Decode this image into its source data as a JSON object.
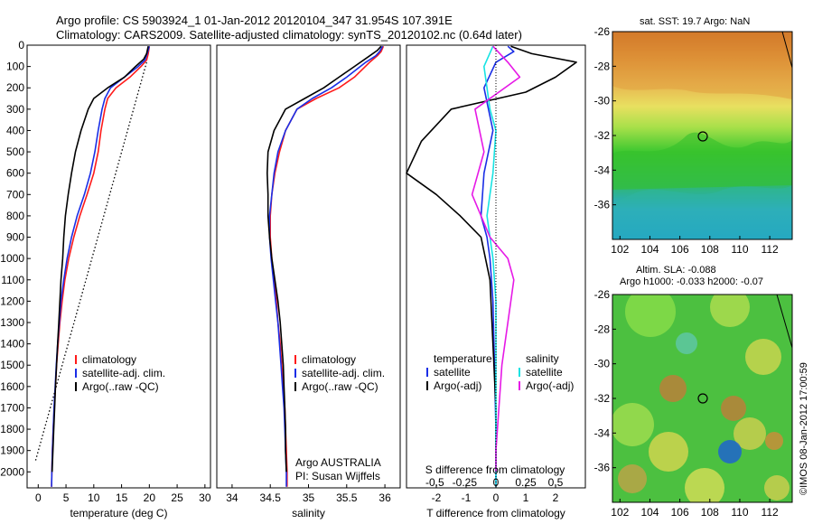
{
  "header": {
    "line1": "Argo profile: CS 5903924_1 01-Jan-2012 20120104_347 31.954S 107.391E",
    "line2": "Climatology: CARS2009. Satellite-adjusted climatology: synTS_20120102.nc (0.64d later)"
  },
  "colors": {
    "climatology": "#ff1a1a",
    "satellite": "#1a2ee6",
    "argo": "#000000",
    "satellite_salinity": "#17e3e3",
    "argo_salinity": "#e619e6"
  },
  "chart_data": [
    {
      "type": "line",
      "name": "temperature-profile",
      "xlabel": "temperature (deg C)",
      "xlim": [
        -2,
        31
      ],
      "ylim": [
        2075,
        0
      ],
      "xticks": [
        0,
        5,
        10,
        15,
        20,
        25,
        30
      ],
      "yticks": [
        0,
        100,
        200,
        300,
        400,
        500,
        600,
        700,
        800,
        900,
        1000,
        1100,
        1200,
        1300,
        1400,
        1500,
        1600,
        1700,
        1800,
        1900,
        2000
      ],
      "legend": [
        "climatology",
        "satellite-adj. clim.",
        "Argo(..raw -QC)"
      ],
      "series": [
        {
          "name": "climatology",
          "color": "#ff1a1a",
          "points": [
            [
              20,
              5
            ],
            [
              19.8,
              40
            ],
            [
              19.5,
              70
            ],
            [
              18.5,
              100
            ],
            [
              16.5,
              150
            ],
            [
              14,
              200
            ],
            [
              12.5,
              250
            ],
            [
              12,
              300
            ],
            [
              11.3,
              400
            ],
            [
              10.8,
              500
            ],
            [
              10,
              600
            ],
            [
              8.8,
              700
            ],
            [
              7.5,
              800
            ],
            [
              6.4,
              900
            ],
            [
              5.5,
              1000
            ],
            [
              4.8,
              1100
            ],
            [
              4.3,
              1200
            ],
            [
              3.9,
              1300
            ],
            [
              3.6,
              1400
            ],
            [
              3.3,
              1500
            ],
            [
              3.1,
              1600
            ],
            [
              2.9,
              1700
            ],
            [
              2.7,
              1800
            ],
            [
              2.55,
              1900
            ],
            [
              2.45,
              2000
            ],
            [
              2.4,
              2070
            ]
          ]
        },
        {
          "name": "satellite-adj. clim.",
          "color": "#1a2ee6",
          "points": [
            [
              20,
              5
            ],
            [
              19.6,
              40
            ],
            [
              19.2,
              70
            ],
            [
              18,
              100
            ],
            [
              15.5,
              150
            ],
            [
              13,
              200
            ],
            [
              12,
              250
            ],
            [
              11.5,
              300
            ],
            [
              10.8,
              400
            ],
            [
              10.2,
              500
            ],
            [
              9.4,
              600
            ],
            [
              8.3,
              700
            ],
            [
              7,
              800
            ],
            [
              6,
              900
            ],
            [
              5.2,
              1000
            ],
            [
              4.6,
              1100
            ],
            [
              4.1,
              1200
            ],
            [
              3.8,
              1300
            ],
            [
              3.5,
              1400
            ],
            [
              3.25,
              1500
            ],
            [
              3.05,
              1600
            ],
            [
              2.85,
              1700
            ],
            [
              2.7,
              1800
            ],
            [
              2.55,
              1900
            ],
            [
              2.45,
              2000
            ],
            [
              2.4,
              2070
            ]
          ]
        },
        {
          "name": "Argo(..raw -QC)",
          "color": "#000000",
          "points": [
            [
              19.8,
              5
            ],
            [
              19.5,
              40
            ],
            [
              19,
              65
            ],
            [
              17.5,
              100
            ],
            [
              15.5,
              150
            ],
            [
              12.5,
              200
            ],
            [
              10,
              250
            ],
            [
              9,
              300
            ],
            [
              7.7,
              400
            ],
            [
              6.7,
              500
            ],
            [
              6,
              600
            ],
            [
              5.4,
              700
            ],
            [
              4.9,
              800
            ],
            [
              4.6,
              900
            ],
            [
              4.4,
              1000
            ],
            [
              4.1,
              1100
            ],
            [
              3.9,
              1200
            ],
            [
              3.7,
              1300
            ],
            [
              3.5,
              1400
            ],
            [
              3.3,
              1500
            ],
            [
              3.1,
              1600
            ],
            [
              2.95,
              1700
            ],
            [
              2.8,
              1800
            ],
            [
              2.65,
              1900
            ],
            [
              2.5,
              2000
            ]
          ]
        },
        {
          "name": "",
          "color": "#000000",
          "dotted": true,
          "points": [
            [
              19.5,
              80
            ],
            [
              -0.5,
              1950
            ]
          ]
        }
      ]
    },
    {
      "type": "line",
      "name": "salinity-profile",
      "xlabel": "salinity",
      "xlim": [
        33.8,
        36.2
      ],
      "ylim": [
        2075,
        0
      ],
      "xticks": [
        34,
        34.5,
        35,
        35.5,
        36
      ],
      "legend": [
        "climatology",
        "satellite-adj. clim.",
        "Argo(..raw -QC)"
      ],
      "annotation_line1": "Argo AUSTRALIA",
      "annotation_line2": "PI: Susan Wijffels",
      "series": [
        {
          "name": "climatology",
          "color": "#ff1a1a",
          "points": [
            [
              35.98,
              5
            ],
            [
              35.95,
              30
            ],
            [
              35.9,
              50
            ],
            [
              35.8,
              80
            ],
            [
              35.6,
              150
            ],
            [
              35.4,
              200
            ],
            [
              35.1,
              250
            ],
            [
              34.85,
              300
            ],
            [
              34.7,
              400
            ],
            [
              34.62,
              500
            ],
            [
              34.56,
              600
            ],
            [
              34.52,
              700
            ],
            [
              34.5,
              800
            ],
            [
              34.5,
              900
            ],
            [
              34.52,
              1000
            ],
            [
              34.55,
              1100
            ],
            [
              34.58,
              1200
            ],
            [
              34.6,
              1300
            ],
            [
              34.63,
              1400
            ],
            [
              34.65,
              1500
            ],
            [
              34.67,
              1600
            ],
            [
              34.69,
              1700
            ],
            [
              34.7,
              1800
            ],
            [
              34.71,
              1900
            ],
            [
              34.72,
              2000
            ],
            [
              34.72,
              2070
            ]
          ]
        },
        {
          "name": "satellite-adj. clim.",
          "color": "#1a2ee6",
          "points": [
            [
              35.97,
              5
            ],
            [
              35.93,
              30
            ],
            [
              35.88,
              50
            ],
            [
              35.75,
              80
            ],
            [
              35.5,
              150
            ],
            [
              35.3,
              200
            ],
            [
              35.05,
              250
            ],
            [
              34.85,
              300
            ],
            [
              34.7,
              400
            ],
            [
              34.6,
              500
            ],
            [
              34.55,
              600
            ],
            [
              34.52,
              700
            ],
            [
              34.49,
              800
            ],
            [
              34.49,
              900
            ],
            [
              34.51,
              1000
            ],
            [
              34.54,
              1100
            ],
            [
              34.57,
              1200
            ],
            [
              34.6,
              1300
            ],
            [
              34.62,
              1400
            ],
            [
              34.64,
              1500
            ],
            [
              34.66,
              1600
            ],
            [
              34.68,
              1700
            ],
            [
              34.69,
              1800
            ],
            [
              34.7,
              1900
            ],
            [
              34.71,
              2000
            ],
            [
              34.71,
              2070
            ]
          ]
        },
        {
          "name": "Argo(..raw -QC)",
          "color": "#000000",
          "points": [
            [
              35.95,
              5
            ],
            [
              35.9,
              25
            ],
            [
              35.8,
              50
            ],
            [
              35.6,
              100
            ],
            [
              35.4,
              150
            ],
            [
              35.2,
              200
            ],
            [
              34.95,
              250
            ],
            [
              34.7,
              300
            ],
            [
              34.55,
              400
            ],
            [
              34.47,
              500
            ],
            [
              34.46,
              600
            ],
            [
              34.47,
              700
            ],
            [
              34.47,
              800
            ],
            [
              34.49,
              900
            ],
            [
              34.52,
              1000
            ],
            [
              34.56,
              1100
            ],
            [
              34.6,
              1200
            ],
            [
              34.63,
              1300
            ],
            [
              34.65,
              1400
            ],
            [
              34.67,
              1500
            ],
            [
              34.68,
              1600
            ],
            [
              34.69,
              1700
            ],
            [
              34.7,
              1800
            ],
            [
              34.7,
              1900
            ],
            [
              34.71,
              2000
            ]
          ]
        }
      ]
    },
    {
      "type": "line",
      "name": "difference-profile",
      "xlabel": "T difference from climatology",
      "toplabel": "S difference from climatology",
      "xlim": [
        -3,
        3
      ],
      "ylim": [
        2075,
        0
      ],
      "xticks": [
        -2,
        -1,
        0,
        1,
        2
      ],
      "top_ticks": [
        "-0.5",
        "-0.25",
        "0",
        "0.25",
        "0.5"
      ],
      "legend_header_left": "temperature",
      "legend_header_right": "salinity",
      "legend": [
        "satellite",
        "Argo(-adj)",
        "satellite",
        "Argo(-adj)"
      ],
      "series": [
        {
          "name": "temperature satellite",
          "color": "#1a2ee6",
          "points": [
            [
              0.4,
              5
            ],
            [
              0.6,
              30
            ],
            [
              0,
              80
            ],
            [
              -0.4,
              200
            ],
            [
              -0.1,
              400
            ],
            [
              -0.4,
              600
            ],
            [
              -0.5,
              800
            ],
            [
              -0.3,
              900
            ],
            [
              -0.2,
              1000
            ],
            [
              -0.1,
              1200
            ],
            [
              -0.05,
              1500
            ],
            [
              0,
              1800
            ],
            [
              0,
              2070
            ]
          ]
        },
        {
          "name": "temperature Argo(-adj)",
          "color": "#000000",
          "points": [
            [
              0.5,
              5
            ],
            [
              1.2,
              40
            ],
            [
              2.7,
              80
            ],
            [
              2,
              150
            ],
            [
              1,
              220
            ],
            [
              -1.5,
              300
            ],
            [
              -2.5,
              450
            ],
            [
              -3,
              600
            ],
            [
              -2,
              700
            ],
            [
              -1.2,
              800
            ],
            [
              -0.5,
              900
            ],
            [
              -0.2,
              1100
            ],
            [
              -0.1,
              1400
            ],
            [
              0,
              1700
            ],
            [
              0,
              2000
            ]
          ]
        },
        {
          "name": "salinity satellite",
          "color": "#17e3e3",
          "points": [
            [
              -0.1,
              5
            ],
            [
              -0.4,
              100
            ],
            [
              -0.2,
              300
            ],
            [
              0,
              400
            ],
            [
              -0.1,
              600
            ],
            [
              -0.3,
              800
            ],
            [
              -0.1,
              1000
            ],
            [
              0,
              1200
            ],
            [
              0,
              1600
            ],
            [
              0,
              2070
            ]
          ]
        },
        {
          "name": "salinity Argo(-adj)",
          "color": "#e619e6",
          "points": [
            [
              -0.1,
              5
            ],
            [
              0.4,
              80
            ],
            [
              0.8,
              150
            ],
            [
              -0.7,
              300
            ],
            [
              -0.4,
              500
            ],
            [
              -0.8,
              700
            ],
            [
              -0.2,
              900
            ],
            [
              0.4,
              1000
            ],
            [
              0.6,
              1100
            ],
            [
              0.4,
              1300
            ],
            [
              0.2,
              1500
            ],
            [
              0.1,
              1700
            ],
            [
              0,
              1900
            ],
            [
              0,
              2000
            ]
          ]
        }
      ]
    },
    {
      "type": "heatmap",
      "name": "sst-map",
      "title": "sat. SST: 19.7  Argo: NaN",
      "xlim": [
        101.5,
        113.5
      ],
      "ylim": [
        -38,
        -26
      ],
      "xticks": [
        102,
        104,
        106,
        108,
        110,
        112
      ],
      "yticks": [
        -26,
        -28,
        -30,
        -32,
        -34,
        -36
      ],
      "marker": [
        107.39,
        -31.95
      ]
    },
    {
      "type": "heatmap",
      "name": "sla-map",
      "title_line1": "Altim. SLA: -0.088",
      "title_line2": "Argo h1000: -0.033  h2000: -0.07",
      "xlim": [
        101.5,
        113.5
      ],
      "ylim": [
        -38,
        -26
      ],
      "xticks": [
        102,
        104,
        106,
        108,
        110,
        112
      ],
      "yticks": [
        -26,
        -28,
        -30,
        -32,
        -34,
        -36
      ],
      "marker": [
        107.39,
        -31.95
      ]
    }
  ],
  "footer": {
    "credit": "©IMOS 08-Jan-2012 17:00:59"
  }
}
